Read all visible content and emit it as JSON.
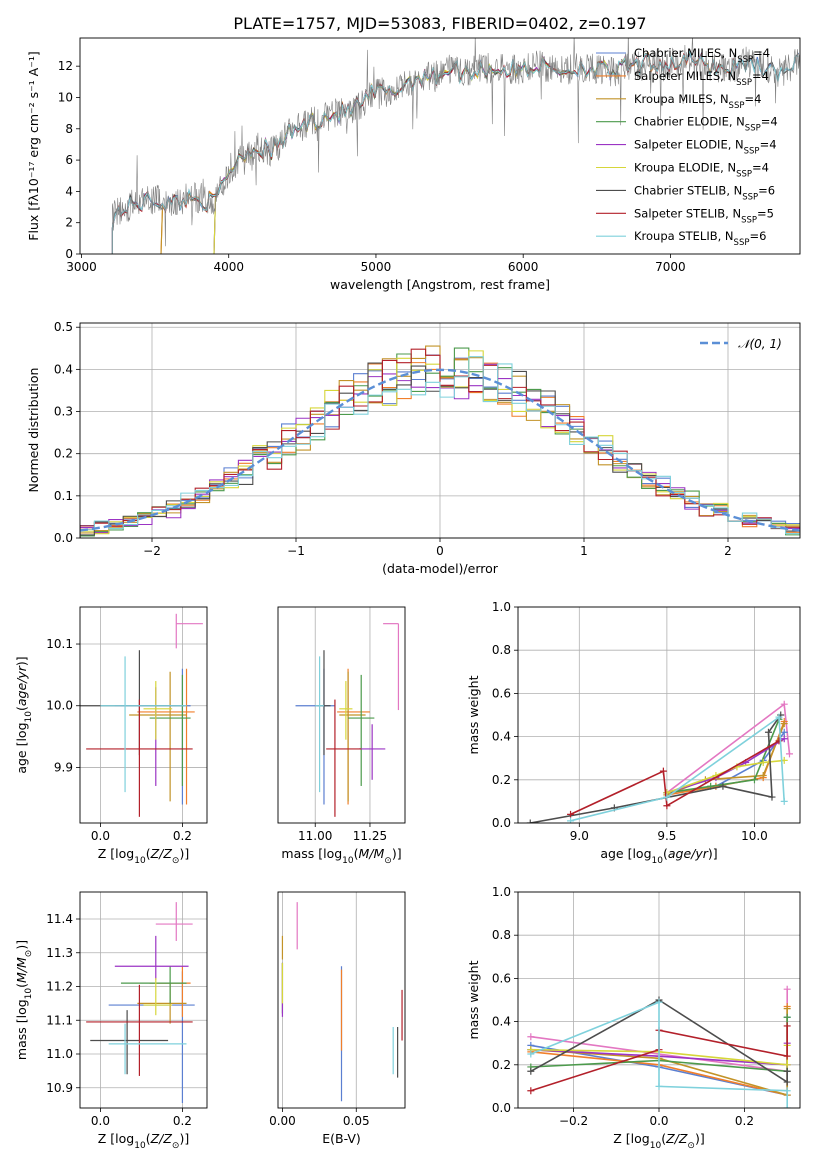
{
  "figure_title": "PLATE=1757, MJD=53083, FIBERID=0402, z=0.197",
  "models": [
    {
      "name": "Chabrier MILES",
      "nssp": "4",
      "color": "#5b7fd1"
    },
    {
      "name": "Salpeter MILES",
      "nssp": "4",
      "color": "#f07f2b"
    },
    {
      "name": "Kroupa MILES",
      "nssp": "4",
      "color": "#c29328"
    },
    {
      "name": "Chabrier ELODIE",
      "nssp": "4",
      "color": "#4c9a4c"
    },
    {
      "name": "Salpeter ELODIE",
      "nssp": "4",
      "color": "#9b34c4"
    },
    {
      "name": "Kroupa ELODIE",
      "nssp": "4",
      "color": "#d6d63a"
    },
    {
      "name": "Chabrier STELIB",
      "nssp": "6",
      "color": "#4d4d4d"
    },
    {
      "name": "Salpeter STELIB",
      "nssp": "5",
      "color": "#b3202a"
    },
    {
      "name": "Kroupa STELIB",
      "nssp": "6",
      "color": "#7fd1dc"
    }
  ],
  "chart_data": [
    {
      "id": "spectrum",
      "type": "line",
      "xlabel": "wavelength [Angstrom, rest frame]",
      "ylabel": "Flux [f_λ 10^-17 erg cm^-2 s^-1 A^-1]",
      "xlim": [
        2990,
        7880
      ],
      "ylim": [
        0,
        13.8
      ],
      "xticks": [
        3000,
        4000,
        5000,
        6000,
        7000
      ],
      "yticks": [
        0,
        2,
        4,
        6,
        8,
        10,
        12
      ],
      "legend": "right",
      "grid": false,
      "observed": {
        "color": "#808080",
        "x": [
          3210,
          3300,
          3400,
          3500,
          3600,
          3700,
          3800,
          3900,
          4000,
          4100,
          4200,
          4300,
          4400,
          4500,
          4600,
          4700,
          4800,
          4900,
          5000,
          5100,
          5200,
          5300,
          5400,
          5500,
          5600,
          5700,
          5800,
          5900,
          6000,
          6100,
          6200,
          6300,
          6400,
          6500,
          6600,
          6700,
          6800,
          6900,
          7000,
          7100,
          7200,
          7300,
          7400,
          7500,
          7600,
          7700,
          7800,
          7880
        ],
        "y": [
          2.4,
          3.0,
          3.3,
          3.5,
          3.2,
          3.5,
          3.6,
          3.2,
          5.3,
          6.5,
          6.8,
          6.6,
          7.6,
          8.2,
          8.6,
          8.9,
          9.1,
          9.5,
          10.4,
          10.2,
          10.9,
          11.4,
          11.3,
          11.9,
          11.5,
          11.8,
          11.9,
          11.7,
          11.8,
          12.1,
          11.8,
          11.7,
          12.0,
          11.8,
          11.6,
          11.9,
          12.0,
          12.3,
          12.1,
          12.4,
          12.2,
          12.0,
          11.8,
          12.3,
          12.1,
          11.6,
          11.8,
          12.4
        ]
      },
      "model_ranges": [
        [
          3210,
          7880
        ],
        [
          3540,
          7450
        ],
        [
          3540,
          7450
        ],
        [
          3900,
          6800
        ],
        [
          3900,
          6800
        ],
        [
          3900,
          6800
        ],
        [
          3210,
          7880
        ],
        [
          3210,
          7450
        ],
        [
          3210,
          7880
        ]
      ]
    },
    {
      "id": "residuals",
      "type": "histogram",
      "xlabel": "(data-model)/error",
      "ylabel": "Normed distribution",
      "xlim": [
        -2.5,
        2.5
      ],
      "ylim": [
        0,
        0.51
      ],
      "xticks": [
        -2,
        -1,
        0,
        1,
        2
      ],
      "yticks": [
        0.0,
        0.1,
        0.2,
        0.3,
        0.4,
        0.5
      ],
      "grid": true,
      "reference_curve": {
        "label": "N(0,1)",
        "mean": 0,
        "sigma": 1,
        "color": "#5b8fd6"
      },
      "bin_width": 0.1,
      "bin_start": -2.5,
      "legend": "top-right"
    },
    {
      "id": "age_vs_Z",
      "type": "errorbar",
      "xlabel": "Z [log10(Z/Z_sun)]",
      "ylabel": "age [log10(age/yr)]",
      "xlim": [
        -0.05,
        0.26
      ],
      "ylim": [
        9.81,
        10.16
      ],
      "xticks": [
        0.0,
        0.2
      ],
      "yticks": [
        9.9,
        10.0,
        10.1
      ],
      "grid": true,
      "points": [
        {
          "x": 0.2,
          "xerr": [
            0.15,
            0.02
          ],
          "y": 10.0,
          "yerr": [
            0.16,
            0.06
          ]
        },
        {
          "x": 0.21,
          "xerr": [
            0.12,
            0.02
          ],
          "y": 9.99,
          "yerr": [
            0.15,
            0.07
          ]
        },
        {
          "x": 0.17,
          "xerr": [
            0.1,
            0.04
          ],
          "y": 9.985,
          "yerr": [
            0.14,
            0.07
          ]
        },
        {
          "x": 0.2,
          "xerr": [
            0.08,
            0.02
          ],
          "y": 9.98,
          "yerr": [
            0.11,
            0.07
          ]
        },
        {
          "x": 0.135,
          "xerr": [
            0.1,
            0.05
          ],
          "y": 10.0,
          "yerr": [
            0.13,
            0.03
          ]
        },
        {
          "x": 0.135,
          "xerr": [
            0.03,
            0.04
          ],
          "y": 9.995,
          "yerr": [
            0.05,
            0.045
          ]
        },
        {
          "x": 0.095,
          "xerr": [
            0.16,
            0.11
          ],
          "y": 10.0,
          "yerr": [
            0.08,
            0.09
          ]
        },
        {
          "x": 0.095,
          "xerr": [
            0.13,
            0.13
          ],
          "y": 9.93,
          "yerr": [
            0.11,
            0.08
          ]
        },
        {
          "x": 0.06,
          "xerr": [
            0.06,
            0.15
          ],
          "y": 10.0,
          "yerr": [
            0.14,
            0.08
          ]
        }
      ],
      "extra_pink": {
        "x": 0.185,
        "xerr": [
          0.0,
          0.065
        ],
        "y": 10.133,
        "yerr": [
          0.04,
          0.016
        ]
      }
    },
    {
      "id": "age_vs_mass",
      "type": "errorbar",
      "xlabel": "mass [log10(M/M_sun)]",
      "ylabel": "",
      "xlim": [
        10.83,
        11.41
      ],
      "ylim": [
        9.81,
        10.16
      ],
      "xticks": [
        11.0,
        11.25
      ],
      "grid": true,
      "points": [
        {
          "x": 11.04,
          "y": 10.0,
          "xerr": [
            0.13,
            0.05
          ],
          "yerr": [
            0.16,
            0.06
          ]
        },
        {
          "x": 11.15,
          "y": 9.99,
          "xerr": [
            0.05,
            0.1
          ],
          "yerr": [
            0.15,
            0.07
          ]
        },
        {
          "x": 11.15,
          "y": 9.985,
          "xerr": [
            0.04,
            0.08
          ],
          "yerr": [
            0.14,
            0.07
          ]
        },
        {
          "x": 11.21,
          "y": 9.98,
          "xerr": [
            0.06,
            0.06
          ],
          "yerr": [
            0.11,
            0.07
          ]
        },
        {
          "x": 11.26,
          "y": 9.93,
          "xerr": [
            0.06,
            0.06
          ],
          "yerr": [
            0.05,
            0.04
          ]
        },
        {
          "x": 11.14,
          "y": 9.995,
          "xerr": [
            0.03,
            0.03
          ],
          "yerr": [
            0.05,
            0.045
          ]
        },
        {
          "x": 11.04,
          "y": 10.0,
          "xerr": [
            0.03,
            0.03
          ],
          "yerr": [
            0.08,
            0.09
          ]
        },
        {
          "x": 11.09,
          "y": 9.93,
          "xerr": [
            0.04,
            0.12
          ],
          "yerr": [
            0.11,
            0.08
          ]
        },
        {
          "x": 11.02,
          "y": 10.0,
          "xerr": [
            0.02,
            0.02
          ],
          "yerr": [
            0.14,
            0.08
          ]
        }
      ],
      "extra_pink": {
        "x": 11.38,
        "xerr": [
          0.07,
          0.0
        ],
        "y": 10.133,
        "yerr": [
          0.14,
          0.0
        ]
      }
    },
    {
      "id": "weight_vs_age",
      "type": "line",
      "xlabel": "age [log10(age/yr)]",
      "ylabel": "mass weight",
      "xlim": [
        8.65,
        10.26
      ],
      "ylim": [
        0,
        1.0
      ],
      "xticks": [
        9.0,
        9.5,
        10.0
      ],
      "yticks": [
        0.0,
        0.2,
        0.4,
        0.6,
        0.8,
        1.0
      ],
      "grid": true,
      "series": [
        {
          "x": [
            9.5,
            9.78,
            10.05,
            10.17
          ],
          "y": [
            0.14,
            0.17,
            0.29,
            0.42
          ]
        },
        {
          "x": [
            9.5,
            9.78,
            10.05,
            10.17
          ],
          "y": [
            0.13,
            0.17,
            0.21,
            0.47
          ]
        },
        {
          "x": [
            9.5,
            9.72,
            10.05,
            10.17
          ],
          "y": [
            0.13,
            0.2,
            0.22,
            0.46
          ]
        },
        {
          "x": [
            9.5,
            9.75,
            10.0,
            10.14
          ],
          "y": [
            0.14,
            0.17,
            0.2,
            0.48
          ]
        },
        {
          "x": [
            9.5,
            9.78,
            9.95,
            10.17
          ],
          "y": [
            0.14,
            0.21,
            0.28,
            0.39
          ]
        },
        {
          "x": [
            9.5,
            9.78,
            9.9,
            10.05,
            10.17
          ],
          "y": [
            0.14,
            0.22,
            0.26,
            0.28,
            0.29
          ]
        },
        {
          "x": [
            8.72,
            9.2,
            9.82,
            10.1,
            10.08,
            10.15
          ],
          "y": [
            0.0,
            0.07,
            0.17,
            0.12,
            0.42,
            0.5
          ]
        },
        {
          "x": [
            8.95,
            9.48,
            9.5,
            10.14
          ],
          "y": [
            0.04,
            0.24,
            0.08,
            0.38
          ]
        },
        {
          "x": [
            8.95,
            9.5,
            10.14,
            10.17
          ],
          "y": [
            0.01,
            0.12,
            0.49,
            0.1
          ]
        }
      ],
      "pink": {
        "x": [
          9.5,
          10.17,
          10.2
        ],
        "y": [
          0.14,
          0.55,
          0.32
        ]
      }
    },
    {
      "id": "mass_vs_Z",
      "type": "errorbar",
      "xlabel": "Z [log10(Z/Z_sun)]",
      "ylabel": "mass [log10(M/M_sun)]",
      "xlim": [
        -0.05,
        0.26
      ],
      "ylim": [
        10.84,
        11.48
      ],
      "xticks": [
        0.0,
        0.2
      ],
      "yticks": [
        10.9,
        11.0,
        11.1,
        11.2,
        11.3,
        11.4
      ],
      "grid": true,
      "points": [
        {
          "x": 0.2,
          "y": 11.145,
          "xerr": [
            0.18,
            0.03
          ],
          "yerr": [
            0.29,
            0.1
          ]
        },
        {
          "x": 0.2,
          "y": 11.21,
          "xerr": [
            0.08,
            0.02
          ],
          "yerr": [
            0.1,
            0.05
          ]
        },
        {
          "x": 0.17,
          "y": 11.15,
          "xerr": [
            0.08,
            0.04
          ],
          "yerr": [
            0.06,
            0.06
          ]
        },
        {
          "x": 0.17,
          "y": 11.21,
          "xerr": [
            0.12,
            0.04
          ],
          "yerr": [
            0.06,
            0.05
          ]
        },
        {
          "x": 0.135,
          "y": 11.26,
          "xerr": [
            0.1,
            0.08
          ],
          "yerr": [
            0.04,
            0.09
          ]
        },
        {
          "x": 0.135,
          "y": 11.145,
          "xerr": [
            0.03,
            0.04
          ],
          "yerr": [
            0.03,
            0.08
          ]
        },
        {
          "x": 0.065,
          "y": 11.04,
          "xerr": [
            0.09,
            0.1
          ],
          "yerr": [
            0.1,
            0.09
          ]
        },
        {
          "x": 0.095,
          "y": 11.095,
          "xerr": [
            0.13,
            0.13
          ],
          "yerr": [
            0.16,
            0.11
          ]
        },
        {
          "x": 0.06,
          "y": 11.03,
          "xerr": [
            0.04,
            0.15
          ],
          "yerr": [
            0.09,
            0.06
          ]
        }
      ],
      "extra_pink": {
        "x": 0.185,
        "xerr": [
          0.05,
          0.04
        ],
        "y": 11.385,
        "yerr": [
          0.05,
          0.065
        ]
      }
    },
    {
      "id": "mass_vs_ebv",
      "type": "errorbar",
      "xlabel": "E(B-V)",
      "ylabel": "",
      "xlim": [
        -0.003,
        0.083
      ],
      "ylim": [
        10.84,
        11.48
      ],
      "xticks": [
        0.0,
        0.05
      ],
      "grid": true,
      "points": [
        {
          "x": 0.04,
          "y": 11.03,
          "yerr": [
            0.17,
            0.23
          ]
        },
        {
          "x": 0.04,
          "y": 11.13,
          "yerr": [
            0.12,
            0.12
          ]
        },
        {
          "x": 0.0,
          "y": 11.33,
          "yerr": [
            0.05,
            0.02
          ]
        },
        {
          "x": 0.0,
          "y": 11.2,
          "yerr": [
            0.08,
            0.07
          ]
        },
        {
          "x": 0.0,
          "y": 11.19,
          "yerr": [
            0.08,
            0.08
          ]
        },
        {
          "x": 0.0,
          "y": 11.2,
          "yerr": [
            0.05,
            0.07
          ]
        },
        {
          "x": 0.078,
          "y": 11.0,
          "yerr": [
            0.07,
            0.08
          ]
        },
        {
          "x": 0.081,
          "y": 11.12,
          "yerr": [
            0.08,
            0.07
          ]
        },
        {
          "x": 0.075,
          "y": 11.02,
          "yerr": [
            0.08,
            0.06
          ]
        }
      ],
      "extra_pink": {
        "x": 0.01,
        "y": 11.38,
        "yerr": [
          0.07,
          0.07
        ]
      }
    },
    {
      "id": "weight_vs_Z",
      "type": "line",
      "xlabel": "Z [log10(Z/Z_sun)]",
      "ylabel": "mass weight",
      "xlim": [
        -0.33,
        0.33
      ],
      "ylim": [
        0,
        1.0
      ],
      "xticks": [
        -0.2,
        0.0,
        0.2
      ],
      "yticks": [
        0.0,
        0.2,
        0.4,
        0.6,
        0.8,
        1.0
      ],
      "grid": true,
      "series": [
        {
          "x": [
            -0.3,
            0.0,
            0.3,
            0.3
          ],
          "y": [
            0.29,
            0.19,
            0.06,
            0.42
          ]
        },
        {
          "x": [
            -0.3,
            0.0,
            0.3,
            0.3
          ],
          "y": [
            0.26,
            0.2,
            0.06,
            0.47
          ]
        },
        {
          "x": [
            -0.3,
            0.0,
            0.3,
            0.3
          ],
          "y": [
            0.27,
            0.23,
            0.06,
            0.46
          ]
        },
        {
          "x": [
            -0.3,
            0.0,
            0.3,
            0.3
          ],
          "y": [
            0.19,
            0.22,
            0.17,
            0.42
          ]
        },
        {
          "x": [
            -0.3,
            0.0,
            0.3,
            0.3
          ],
          "y": [
            0.27,
            0.24,
            0.2,
            0.3
          ]
        },
        {
          "x": [
            -0.3,
            0.0,
            0.3,
            0.3
          ],
          "y": [
            0.27,
            0.26,
            0.2,
            0.29
          ]
        },
        {
          "x": [
            -0.3,
            0.0,
            0.3,
            0.3
          ],
          "y": [
            0.17,
            0.5,
            0.12,
            0.17
          ]
        },
        {
          "x": [
            -0.3,
            0.0,
            0.0,
            0.3,
            0.3
          ],
          "y": [
            0.08,
            0.27,
            0.36,
            0.24,
            0.38
          ]
        },
        {
          "x": [
            -0.3,
            0.0,
            0.0,
            0.3,
            0.3
          ],
          "y": [
            0.25,
            0.49,
            0.1,
            0.08,
            0.0
          ]
        }
      ],
      "pink": {
        "x": [
          -0.3,
          0.3,
          0.3
        ],
        "y": [
          0.33,
          0.17,
          0.55
        ]
      }
    }
  ]
}
